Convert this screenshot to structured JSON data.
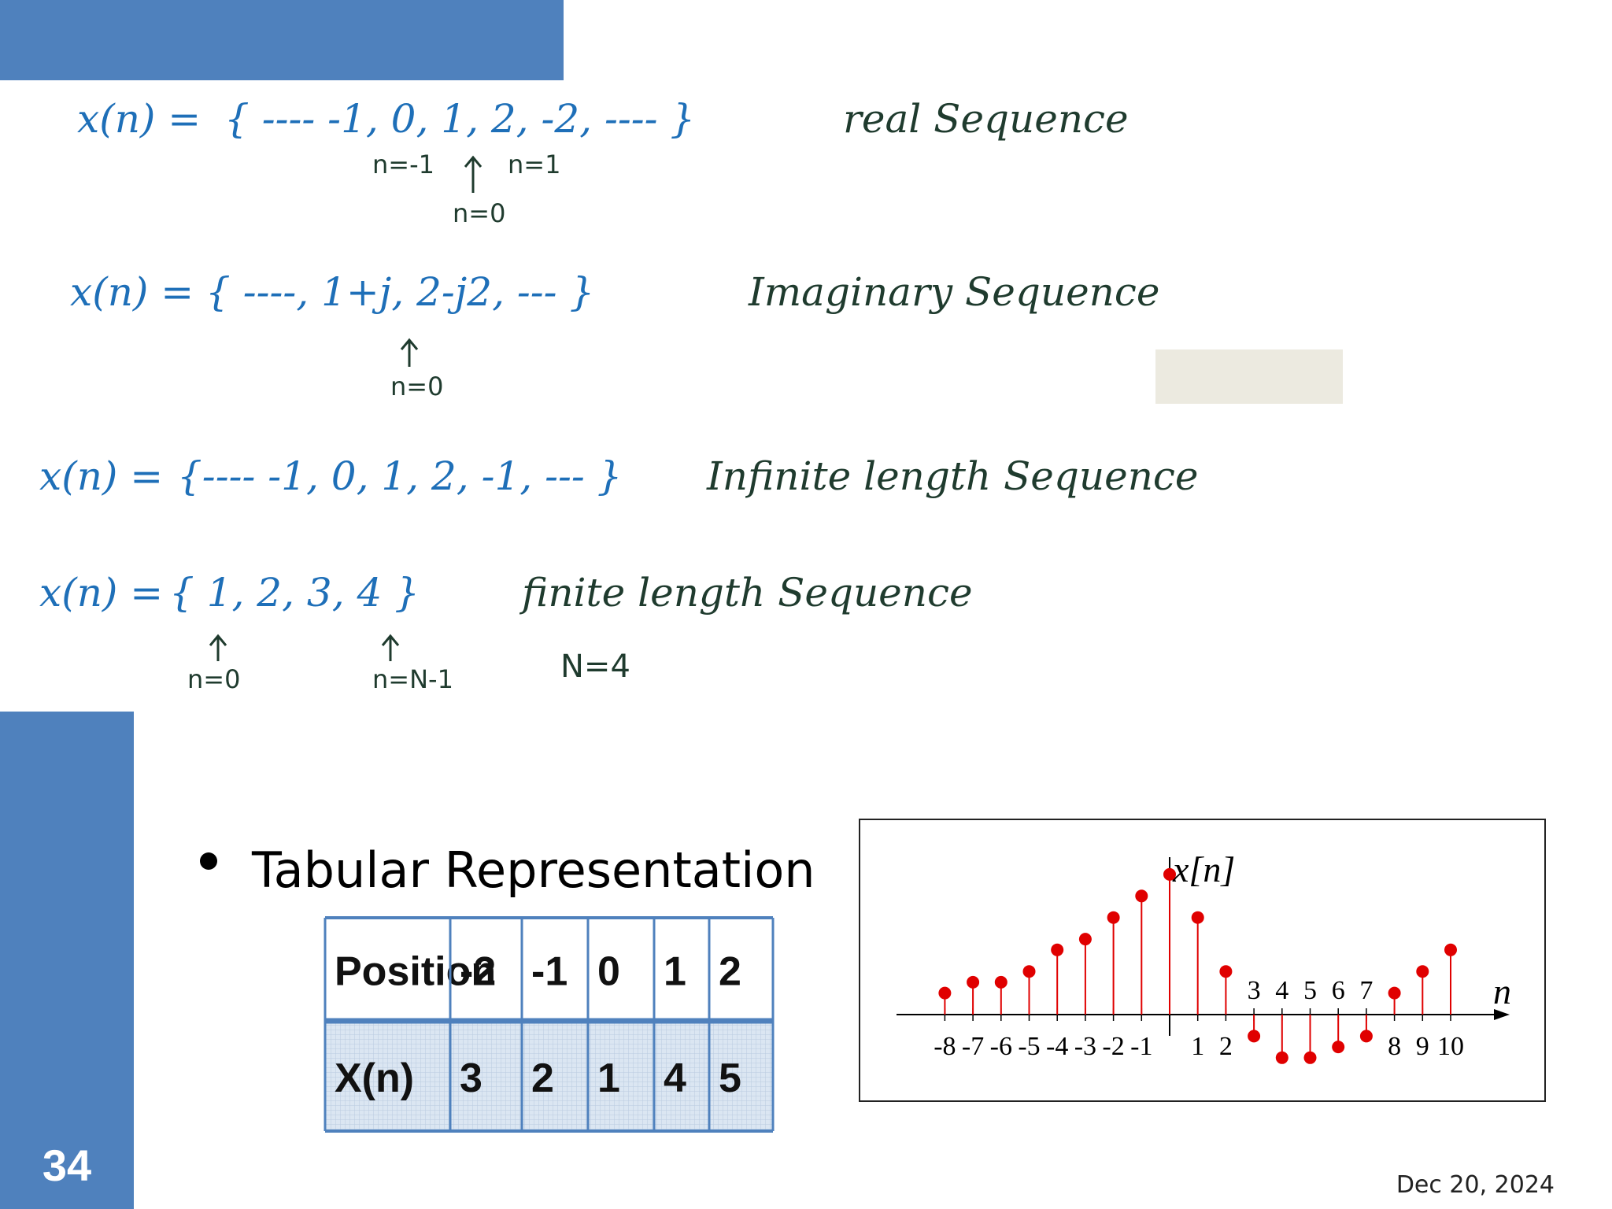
{
  "notes": [
    {
      "lhs": "x(n) =",
      "sequence": "{ ---- -1, 0, 1, 2, -2, ---- }",
      "label": "real Sequence",
      "marks": [
        "n=-1",
        "n=1",
        "n=0"
      ]
    },
    {
      "lhs": "x(n) =",
      "sequence": "{ ----, 1+j, 2-j2, --- }",
      "label": "Imaginary Sequence",
      "marks": [
        "n=0"
      ]
    },
    {
      "lhs": "x(n) =",
      "sequence": "{---- -1, 0, 1, 2, -1, --- }",
      "label": "Infinite length Sequence"
    },
    {
      "lhs": "x(n) =",
      "sequence": "{ 1, 2, 3, 4 }",
      "label": "finite length Sequence",
      "marks": [
        "n=0",
        "n=N-1",
        "N=4"
      ]
    }
  ],
  "bullet": "Tabular Representation",
  "table": {
    "rows": [
      [
        "Position",
        "-2",
        "-1",
        "0",
        "1",
        "2"
      ],
      [
        "X(n)",
        "3",
        "2",
        "1",
        "4",
        "5"
      ]
    ]
  },
  "slide_number": "34",
  "date": "Dec 20, 2024",
  "chart_data": {
    "type": "stem",
    "ylabel": "x[n]",
    "xlabel": "n",
    "color": "#e00000",
    "x": [
      -8,
      -7,
      -6,
      -5,
      -4,
      -3,
      -2,
      -1,
      0,
      1,
      2,
      3,
      4,
      5,
      6,
      7,
      8,
      9,
      10
    ],
    "values": [
      1,
      1.5,
      1.5,
      2,
      3,
      3.5,
      4.5,
      5.5,
      6.5,
      4.5,
      2,
      -1,
      -2,
      -2,
      -1.5,
      -1,
      1,
      2,
      3
    ],
    "xticks": [
      -8,
      -7,
      -6,
      -5,
      -4,
      -3,
      -2,
      -1,
      1,
      2,
      3,
      4,
      5,
      6,
      7,
      8,
      9,
      10
    ]
  }
}
